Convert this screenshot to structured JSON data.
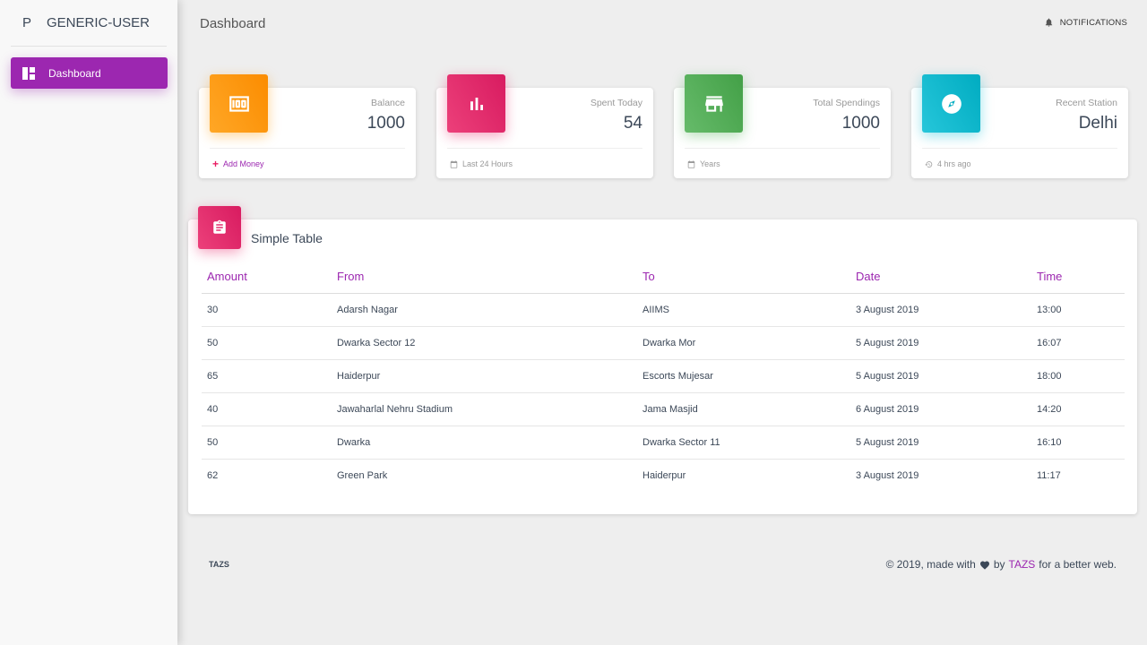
{
  "sidebar": {
    "brand_mini": "P",
    "brand_name": "GENERIC-USER",
    "items": [
      {
        "label": "Dashboard",
        "icon": "dashboard-icon",
        "active": true
      }
    ]
  },
  "topbar": {
    "title": "Dashboard",
    "notifications_label": "NOTIFICATIONS"
  },
  "stats": [
    {
      "category": "Balance",
      "value": "1000",
      "footer": "Add Money",
      "icon": "money-icon",
      "color": "#fb8c00"
    },
    {
      "category": "Spent Today",
      "value": "54",
      "footer": "Last 24 Hours",
      "icon": "bar-chart-icon",
      "color": "#e91e63"
    },
    {
      "category": "Total Spendings",
      "value": "1000",
      "footer": "Years",
      "icon": "store-icon",
      "color": "#4caf50"
    },
    {
      "category": "Recent Station",
      "value": "Delhi",
      "footer": "4 hrs ago",
      "icon": "compass-icon",
      "color": "#00bcd4"
    }
  ],
  "table": {
    "title": "Simple Table",
    "columns": [
      "Amount",
      "From",
      "To",
      "Date",
      "Time"
    ],
    "rows": [
      [
        "30",
        "Adarsh Nagar",
        "AIIMS",
        "3 August 2019",
        "13:00"
      ],
      [
        "50",
        "Dwarka Sector 12",
        "Dwarka Mor",
        "5 August 2019",
        "16:07"
      ],
      [
        "65",
        "Haiderpur",
        "Escorts Mujesar",
        "5 August 2019",
        "18:00"
      ],
      [
        "40",
        "Jawaharlal Nehru Stadium",
        "Jama Masjid",
        "6 August 2019",
        "14:20"
      ],
      [
        "50",
        "Dwarka",
        "Dwarka Sector 11",
        "5 August 2019",
        "16:10"
      ],
      [
        "62",
        "Green Park",
        "Haiderpur",
        "3 August 2019",
        "11:17"
      ]
    ]
  },
  "footer": {
    "left_link": "TAZS",
    "copyright_prefix": "© 2019, made with",
    "copyright_by": "by",
    "copyright_link": "TAZS",
    "copyright_suffix": "for a better web."
  },
  "colors": {
    "accent": "#9c27b0",
    "orange": "#fb8c00",
    "pink": "#e91e63",
    "green": "#4caf50",
    "cyan": "#00bcd4"
  }
}
